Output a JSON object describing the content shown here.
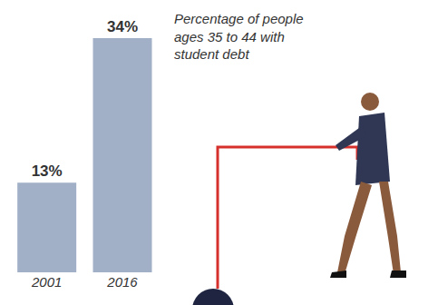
{
  "chart_data": {
    "type": "bar",
    "annotations": [
      "Percentage of people ages 35 to 44 with student debt"
    ],
    "categories": [
      "2001",
      "2016"
    ],
    "values": [
      13,
      34
    ],
    "value_labels": [
      "13%",
      "34%"
    ],
    "data_labels": true,
    "color": "#a1b0c7",
    "ylim": [
      0,
      34
    ],
    "grid": false,
    "tick_labels": "x"
  }
}
